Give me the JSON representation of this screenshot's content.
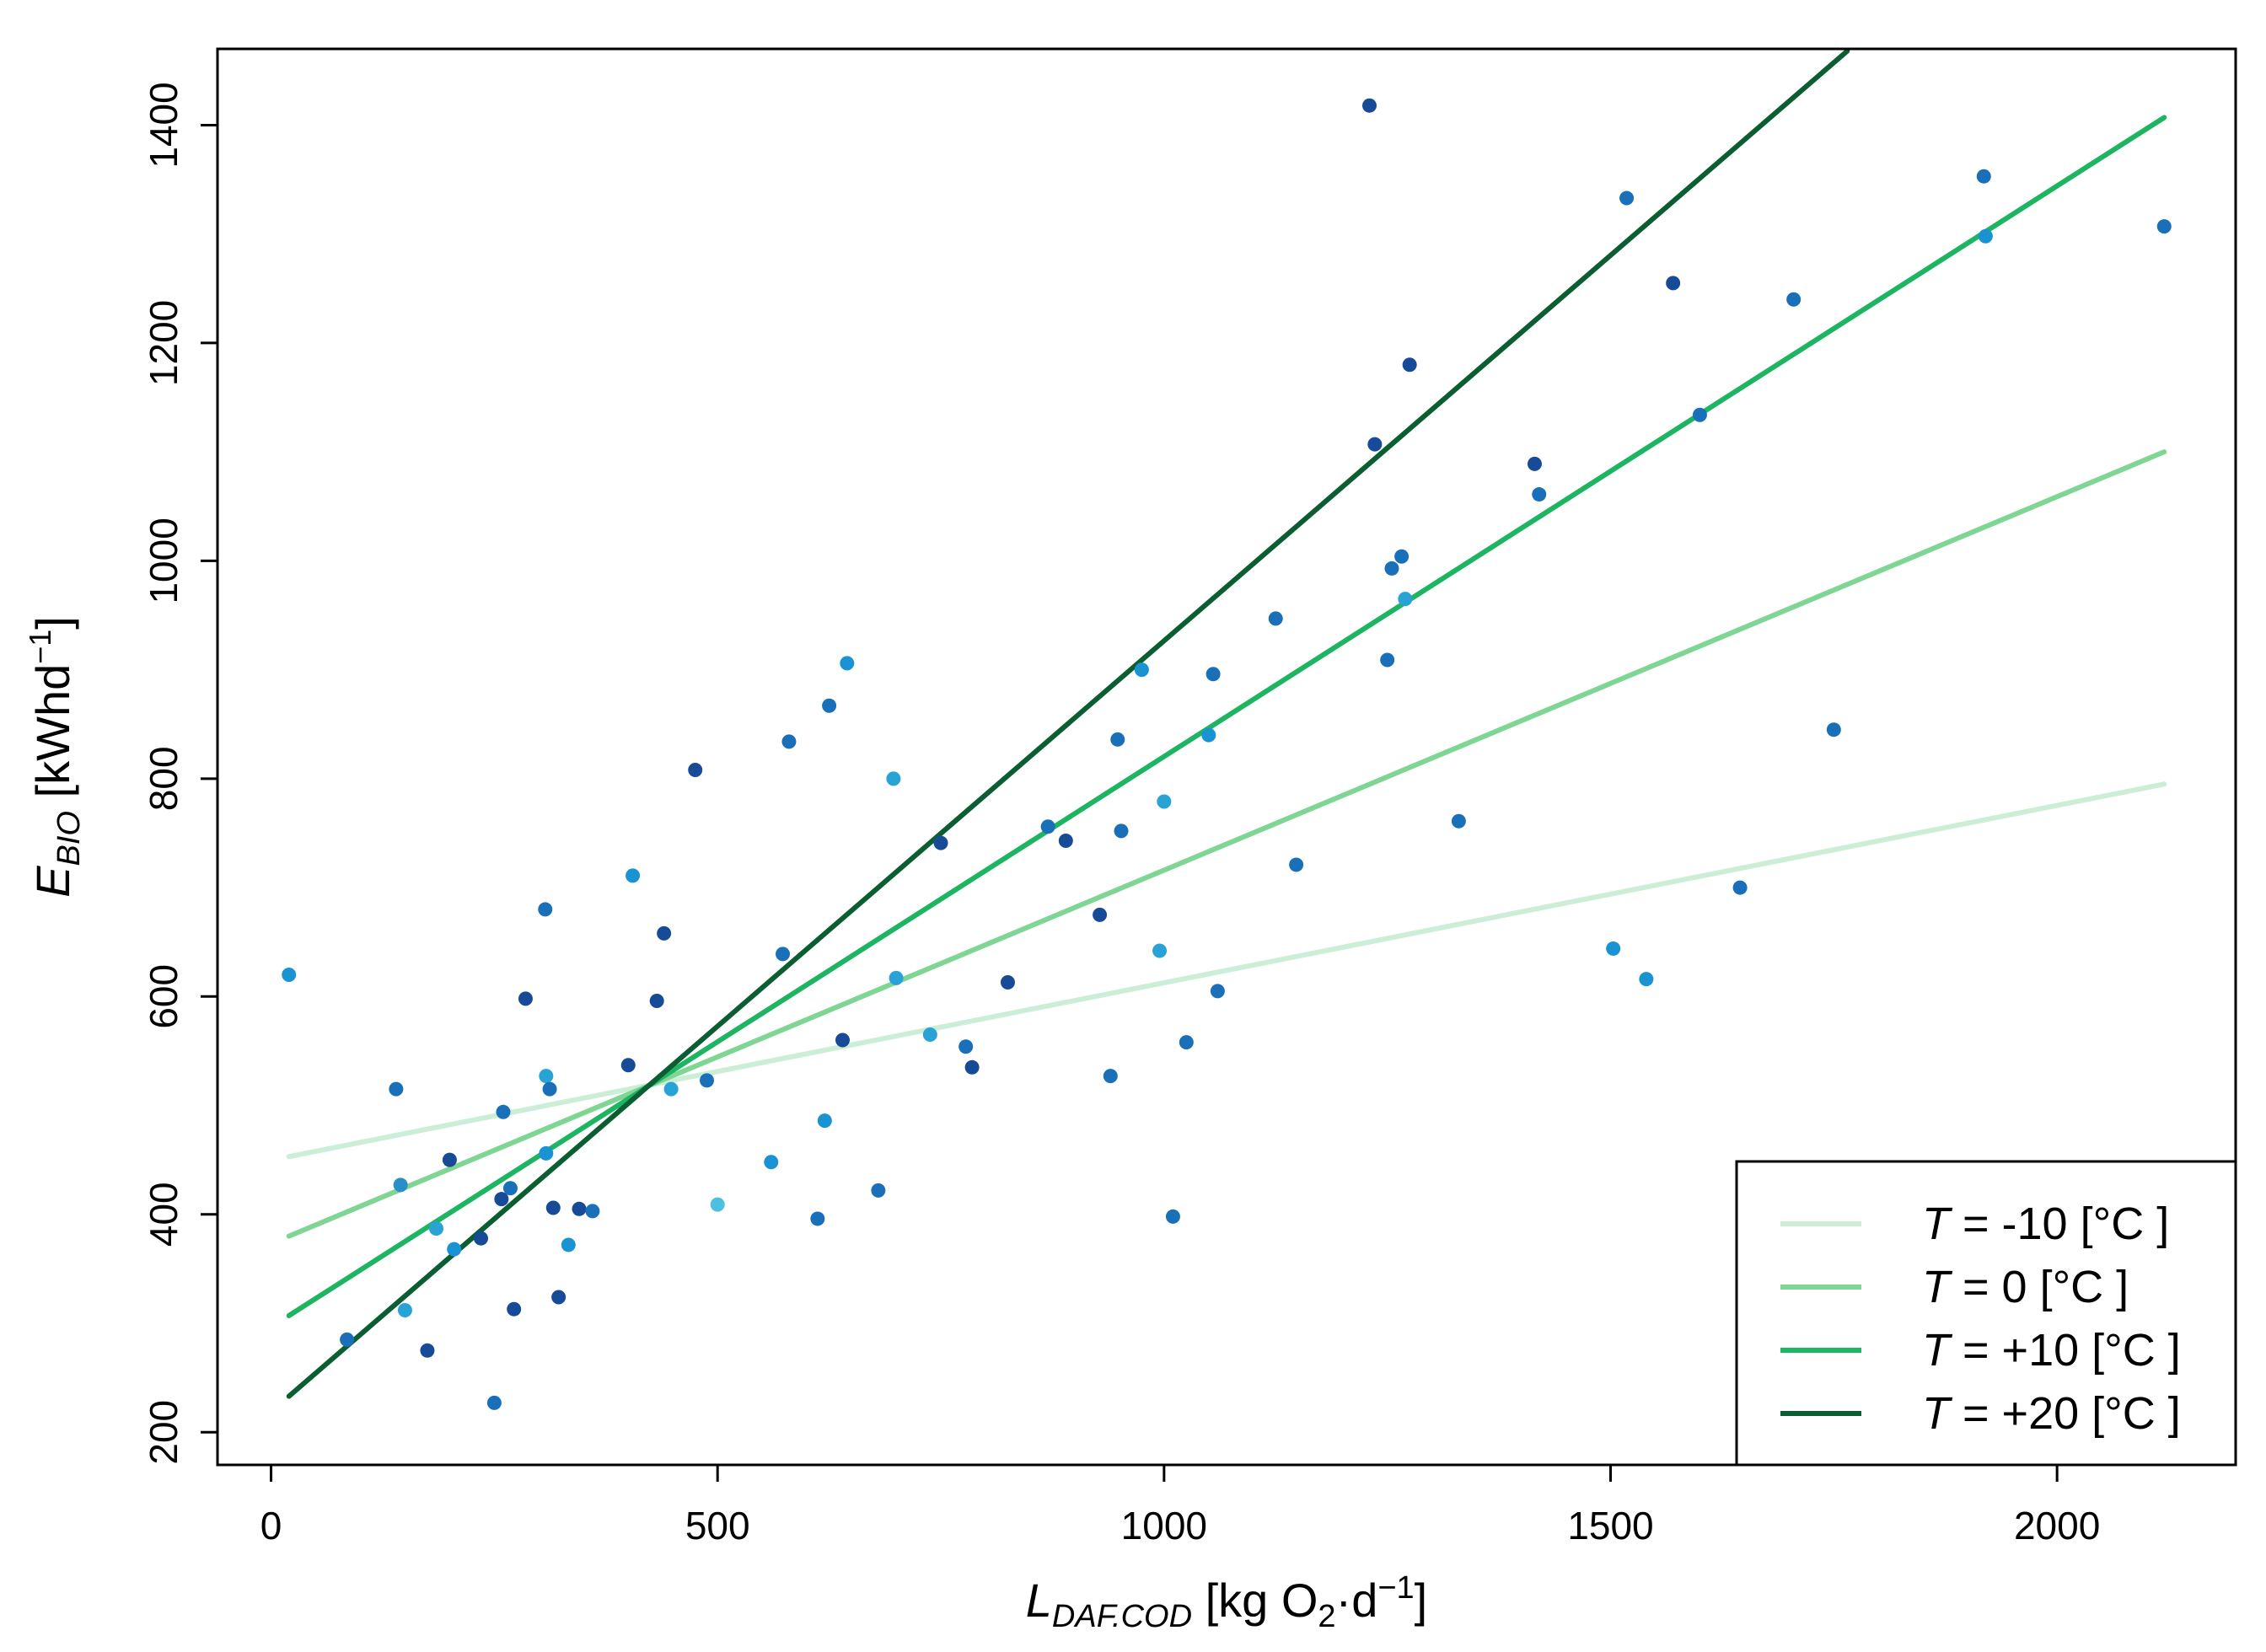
{
  "chart_data": {
    "type": "scatter",
    "xlabel": {
      "main": "L",
      "sub": "DAF.COD",
      "unit_pre": " [kg O",
      "unit_sub": "2",
      "unit_mid": "·d",
      "unit_sup": "−1",
      "unit_post": "]"
    },
    "ylabel": {
      "main": "E",
      "sub": "BIO",
      "unit_pre": " [kWhd",
      "unit_sup": "−1",
      "unit_post": "]"
    },
    "xlim": [
      -60,
      2200
    ],
    "ylim": [
      170,
      1470
    ],
    "xticks": [
      0,
      500,
      1000,
      1500,
      2000
    ],
    "xtick_labels": [
      "0",
      "500",
      "1000",
      "1500",
      "2000"
    ],
    "yticks": [
      200,
      400,
      600,
      800,
      1000,
      1200,
      1400
    ],
    "ytick_labels": [
      "200",
      "400",
      "600",
      "800",
      "1000",
      "1200",
      "1400"
    ],
    "grid": false,
    "legend_position": "bottom-right",
    "series": [
      {
        "name": "T = -10 [°C ]",
        "label_T": "T",
        "label_rest": " = -10 [°C ]",
        "color": "#cdeed6",
        "x": [
          20,
          2120
        ],
        "y": [
          453,
          795
        ]
      },
      {
        "name": "T = 0 [°C ]",
        "label_T": "T",
        "label_rest": " =   0 [°C ]",
        "color": "#7fd694",
        "x": [
          20,
          2120
        ],
        "y": [
          380,
          1100
        ]
      },
      {
        "name": "T = +10 [°C ]",
        "label_T": "T",
        "label_rest": " = +10 [°C ]",
        "color": "#1db462",
        "x": [
          20,
          2120
        ],
        "y": [
          307,
          1407
        ]
      },
      {
        "name": "T = +20 [°C ]",
        "label_T": "T",
        "label_rest": " = +20 [°C ]",
        "color": "#0b5d32",
        "x": [
          20,
          1765
        ],
        "y": [
          233,
          1468
        ]
      }
    ],
    "points": [
      {
        "x": 20,
        "y": 620,
        "c": "#1a93d2"
      },
      {
        "x": 85,
        "y": 285,
        "c": "#1a70b8"
      },
      {
        "x": 140,
        "y": 515,
        "c": "#1a70b8"
      },
      {
        "x": 145,
        "y": 427,
        "c": "#2a8fc8"
      },
      {
        "x": 150,
        "y": 312,
        "c": "#29a3d6"
      },
      {
        "x": 175,
        "y": 275,
        "c": "#174b98"
      },
      {
        "x": 185,
        "y": 387,
        "c": "#29a3d6"
      },
      {
        "x": 200,
        "y": 450,
        "c": "#174b98"
      },
      {
        "x": 205,
        "y": 368,
        "c": "#1a93d2"
      },
      {
        "x": 235,
        "y": 378,
        "c": "#174b98"
      },
      {
        "x": 250,
        "y": 227,
        "c": "#1a70b8"
      },
      {
        "x": 258,
        "y": 414,
        "c": "#174b98"
      },
      {
        "x": 260,
        "y": 494,
        "c": "#1a70b8"
      },
      {
        "x": 268,
        "y": 424,
        "c": "#1a70b8"
      },
      {
        "x": 272,
        "y": 313,
        "c": "#174b98"
      },
      {
        "x": 285,
        "y": 598,
        "c": "#174b98"
      },
      {
        "x": 307,
        "y": 680,
        "c": "#1a70b8"
      },
      {
        "x": 308,
        "y": 527,
        "c": "#29a3d6"
      },
      {
        "x": 312,
        "y": 515,
        "c": "#1a70b8"
      },
      {
        "x": 308,
        "y": 456,
        "c": "#1a93d2"
      },
      {
        "x": 316,
        "y": 406,
        "c": "#174b98"
      },
      {
        "x": 322,
        "y": 324,
        "c": "#174b98"
      },
      {
        "x": 333,
        "y": 372,
        "c": "#1a93d2"
      },
      {
        "x": 345,
        "y": 405,
        "c": "#174b98"
      },
      {
        "x": 360,
        "y": 403,
        "c": "#1a70b8"
      },
      {
        "x": 400,
        "y": 537,
        "c": "#174b98"
      },
      {
        "x": 405,
        "y": 711,
        "c": "#1a93d2"
      },
      {
        "x": 432,
        "y": 596,
        "c": "#174b98"
      },
      {
        "x": 440,
        "y": 658,
        "c": "#174b98"
      },
      {
        "x": 448,
        "y": 515,
        "c": "#29a3d6"
      },
      {
        "x": 475,
        "y": 808,
        "c": "#174b98"
      },
      {
        "x": 488,
        "y": 523,
        "c": "#1a70b8"
      },
      {
        "x": 500,
        "y": 409,
        "c": "#4cc0e0"
      },
      {
        "x": 560,
        "y": 448,
        "c": "#1a93d2"
      },
      {
        "x": 573,
        "y": 639,
        "c": "#1a70b8"
      },
      {
        "x": 580,
        "y": 834,
        "c": "#1a70b8"
      },
      {
        "x": 612,
        "y": 396,
        "c": "#1a70b8"
      },
      {
        "x": 620,
        "y": 486,
        "c": "#1a93d2"
      },
      {
        "x": 625,
        "y": 867,
        "c": "#1a70b8"
      },
      {
        "x": 640,
        "y": 560,
        "c": "#174b98"
      },
      {
        "x": 645,
        "y": 906,
        "c": "#1a93d2"
      },
      {
        "x": 680,
        "y": 422,
        "c": "#1a70b8"
      },
      {
        "x": 697,
        "y": 800,
        "c": "#29a3d6"
      },
      {
        "x": 700,
        "y": 617,
        "c": "#29a3d6"
      },
      {
        "x": 738,
        "y": 565,
        "c": "#29a3d6"
      },
      {
        "x": 750,
        "y": 741,
        "c": "#174b98"
      },
      {
        "x": 778,
        "y": 554,
        "c": "#1a70b8"
      },
      {
        "x": 785,
        "y": 535,
        "c": "#174b98"
      },
      {
        "x": 825,
        "y": 613,
        "c": "#174b98"
      },
      {
        "x": 870,
        "y": 756,
        "c": "#1a70b8"
      },
      {
        "x": 890,
        "y": 743,
        "c": "#174b98"
      },
      {
        "x": 928,
        "y": 675,
        "c": "#174b98"
      },
      {
        "x": 940,
        "y": 527,
        "c": "#1a70b8"
      },
      {
        "x": 948,
        "y": 836,
        "c": "#1a70b8"
      },
      {
        "x": 952,
        "y": 752,
        "c": "#1a70b8"
      },
      {
        "x": 975,
        "y": 900,
        "c": "#1a93d2"
      },
      {
        "x": 995,
        "y": 642,
        "c": "#29a3d6"
      },
      {
        "x": 1000,
        "y": 779,
        "c": "#29a3d6"
      },
      {
        "x": 1010,
        "y": 398,
        "c": "#1a70b8"
      },
      {
        "x": 1025,
        "y": 558,
        "c": "#1a70b8"
      },
      {
        "x": 1050,
        "y": 840,
        "c": "#1a93d2"
      },
      {
        "x": 1055,
        "y": 896,
        "c": "#1a70b8"
      },
      {
        "x": 1060,
        "y": 605,
        "c": "#1a70b8"
      },
      {
        "x": 1125,
        "y": 947,
        "c": "#1a70b8"
      },
      {
        "x": 1148,
        "y": 721,
        "c": "#1a70b8"
      },
      {
        "x": 1230,
        "y": 1418,
        "c": "#174b98"
      },
      {
        "x": 1236,
        "y": 1107,
        "c": "#174b98"
      },
      {
        "x": 1250,
        "y": 909,
        "c": "#1a70b8"
      },
      {
        "x": 1255,
        "y": 993,
        "c": "#1a70b8"
      },
      {
        "x": 1266,
        "y": 1004,
        "c": "#1a70b8"
      },
      {
        "x": 1270,
        "y": 965,
        "c": "#29a3d6"
      },
      {
        "x": 1275,
        "y": 1180,
        "c": "#174b98"
      },
      {
        "x": 1330,
        "y": 761,
        "c": "#1a70b8"
      },
      {
        "x": 1415,
        "y": 1089,
        "c": "#174b98"
      },
      {
        "x": 1420,
        "y": 1061,
        "c": "#1a70b8"
      },
      {
        "x": 1503,
        "y": 644,
        "c": "#1a93d2"
      },
      {
        "x": 1518,
        "y": 1333,
        "c": "#1a70b8"
      },
      {
        "x": 1540,
        "y": 616,
        "c": "#1a93d2"
      },
      {
        "x": 1570,
        "y": 1255,
        "c": "#174b98"
      },
      {
        "x": 1600,
        "y": 1134,
        "c": "#1a70b8"
      },
      {
        "x": 1645,
        "y": 700,
        "c": "#1a70b8"
      },
      {
        "x": 1705,
        "y": 1240,
        "c": "#1a70b8"
      },
      {
        "x": 1750,
        "y": 845,
        "c": "#1a70b8"
      },
      {
        "x": 1918,
        "y": 1353,
        "c": "#1a70b8"
      },
      {
        "x": 1920,
        "y": 1298,
        "c": "#1a93d2"
      },
      {
        "x": 2120,
        "y": 1307,
        "c": "#1a70b8"
      }
    ]
  }
}
